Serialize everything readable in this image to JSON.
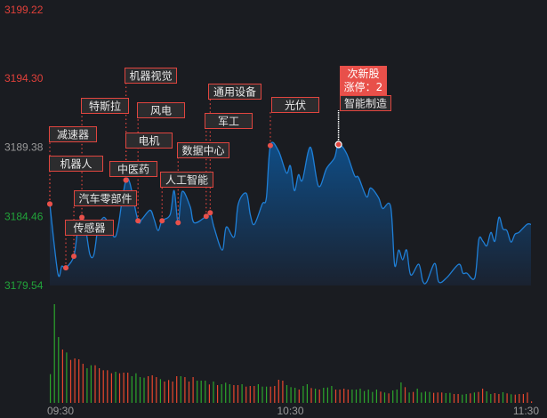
{
  "chart_data": {
    "type": "line",
    "subtype": "intraday-area-with-volume",
    "y_ticks": [
      {
        "label": "3199.22",
        "value": 3199.22,
        "color": "#e0403a"
      },
      {
        "label": "3194.30",
        "value": 3194.3,
        "color": "#e0403a"
      },
      {
        "label": "3189.38",
        "value": 3189.38,
        "color": "#9a9a9a"
      },
      {
        "label": "3184.46",
        "value": 3184.46,
        "color": "#22a33a"
      },
      {
        "label": "3179.54",
        "value": 3179.54,
        "color": "#22a33a"
      }
    ],
    "ylim": [
      3179.54,
      3199.22
    ],
    "x_ticks": [
      "09:30",
      "10:30",
      "11:30"
    ],
    "xlim": [
      "09:30",
      "11:30"
    ],
    "grid": false,
    "colors": {
      "line": "#1f7fd6",
      "fill_top": "#0f4d86",
      "fill_bottom": "#1a2230",
      "up": "#e8472d",
      "down": "#2ca62c",
      "tag_border": "#e0453f",
      "tag_bg": "#2c2c2e",
      "highlight_bg": "#e8504a"
    },
    "price": [
      [
        "09:30",
        3185.34
      ],
      [
        "09:32",
        3180.42
      ],
      [
        "09:33",
        3180.92
      ],
      [
        "09:34",
        3180.8
      ],
      [
        "09:36",
        3181.62
      ],
      [
        "09:37",
        3183.64
      ],
      [
        "09:38",
        3184.39
      ],
      [
        "09:39",
        3183.45
      ],
      [
        "09:40",
        3181.74
      ],
      [
        "09:41",
        3181.74
      ],
      [
        "09:42",
        3183.64
      ],
      [
        "09:43",
        3184.27
      ],
      [
        "09:44",
        3184.27
      ],
      [
        "09:46",
        3183.01
      ],
      [
        "09:47",
        3183.64
      ],
      [
        "09:48",
        3185.53
      ],
      [
        "09:49",
        3187.04
      ],
      [
        "09:50",
        3186.79
      ],
      [
        "09:52",
        3184.14
      ],
      [
        "09:53",
        3184.27
      ],
      [
        "09:55",
        3184.9
      ],
      [
        "09:56",
        3184.27
      ],
      [
        "09:57",
        3183.45
      ],
      [
        "09:58",
        3184.14
      ],
      [
        "10:00",
        3184.58
      ],
      [
        "10:01",
        3186.29
      ],
      [
        "10:02",
        3184.01
      ],
      [
        "10:03",
        3186.22
      ],
      [
        "10:05",
        3185.15
      ],
      [
        "10:06",
        3184.01
      ],
      [
        "10:09",
        3184.46
      ],
      [
        "10:10",
        3184.71
      ],
      [
        "10:11",
        3183.64
      ],
      [
        "10:13",
        3182.06
      ],
      [
        "10:14",
        3183.7
      ],
      [
        "10:16",
        3183.01
      ],
      [
        "10:17",
        3185.34
      ],
      [
        "10:19",
        3186.1
      ],
      [
        "10:20",
        3184.58
      ],
      [
        "10:21",
        3183.89
      ],
      [
        "10:23",
        3185.34
      ],
      [
        "10:24",
        3185.78
      ],
      [
        "10:25",
        3189.5
      ],
      [
        "10:27",
        3189.13
      ],
      [
        "10:29",
        3187.55
      ],
      [
        "10:30",
        3188.05
      ],
      [
        "10:31",
        3186.29
      ],
      [
        "10:32",
        3187.42
      ],
      [
        "10:33",
        3187.04
      ],
      [
        "10:35",
        3189.38
      ],
      [
        "10:37",
        3186.6
      ],
      [
        "10:39",
        3187.86
      ],
      [
        "10:41",
        3188.62
      ],
      [
        "10:42",
        3189.57
      ],
      [
        "10:44",
        3188.94
      ],
      [
        "10:46",
        3187.36
      ],
      [
        "10:47",
        3187.23
      ],
      [
        "10:49",
        3185.84
      ],
      [
        "10:50",
        3186.48
      ],
      [
        "10:52",
        3185.78
      ],
      [
        "10:53",
        3185.02
      ],
      [
        "10:55",
        3185.15
      ],
      [
        "10:56",
        3180.99
      ],
      [
        "10:57",
        3182.06
      ],
      [
        "10:58",
        3181.37
      ],
      [
        "10:59",
        3182.06
      ],
      [
        "11:00",
        3180.29
      ],
      [
        "11:02",
        3181.05
      ],
      [
        "11:03",
        3179.85
      ],
      [
        "11:04",
        3179.79
      ],
      [
        "11:06",
        3181.11
      ],
      [
        "11:07",
        3179.79
      ],
      [
        "11:09",
        3180.1
      ],
      [
        "11:12",
        3181.05
      ],
      [
        "11:13",
        3180.42
      ],
      [
        "11:14",
        3180.42
      ],
      [
        "11:16",
        3180.1
      ],
      [
        "11:17",
        3182.82
      ],
      [
        "11:18",
        3182.69
      ],
      [
        "11:19",
        3182.37
      ],
      [
        "11:20",
        3183.32
      ],
      [
        "11:21",
        3182.69
      ],
      [
        "11:22",
        3184.39
      ],
      [
        "11:23",
        3183.57
      ],
      [
        "11:24",
        3183.45
      ],
      [
        "11:25",
        3182.63
      ],
      [
        "11:26",
        3183.19
      ],
      [
        "11:27",
        3183.32
      ],
      [
        "11:29",
        3183.89
      ],
      [
        "11:30",
        3183.89
      ]
    ],
    "volume": [
      97,
      333,
      222,
      180,
      170,
      145,
      150,
      147,
      132,
      117,
      127,
      127,
      117,
      110,
      110,
      100,
      105,
      100,
      102,
      102,
      90,
      100,
      87,
      85,
      90,
      93,
      87,
      80,
      72,
      77,
      72,
      90,
      90,
      87,
      72,
      87,
      75,
      75,
      75,
      62,
      72,
      60,
      63,
      68,
      63,
      60,
      60,
      63,
      55,
      57,
      57,
      63,
      55,
      55,
      55,
      57,
      78,
      75,
      60,
      53,
      51,
      45,
      57,
      63,
      50,
      48,
      45,
      51,
      52,
      57,
      45,
      45,
      48,
      45,
      45,
      45,
      48,
      40,
      45,
      37,
      45,
      38,
      35,
      32,
      42,
      45,
      69,
      53,
      35,
      37,
      48,
      35,
      38,
      37,
      34,
      35,
      35,
      33,
      34,
      30,
      30,
      28,
      30,
      32,
      35,
      37,
      48,
      39,
      30,
      33,
      30,
      36,
      32,
      29,
      28,
      30,
      30,
      35,
      5
    ],
    "volume_direction": "GGGRGRRRRGGRRRRRGRRRGGGGRRRGRRRRGRRRGGGRGRGGGRRGRRRGGGRRRRGGGRGGRGRGGGRRRRGGGGGGGRGRGGGRGRGGGGRRRGGRRGGRGRRGGRRGRGRRRRR",
    "annotations": [
      {
        "label": "机器人",
        "time": "09:30",
        "price": 3185.34
      },
      {
        "label": "减速器",
        "time": "09:30",
        "price": 3185.34
      },
      {
        "label": "传感器",
        "time": "09:34",
        "price": 3180.8
      },
      {
        "label": "汽车零部件",
        "time": "09:36",
        "price": 3181.62
      },
      {
        "label": "特斯拉",
        "time": "09:38",
        "price": 3184.39
      },
      {
        "label": "中医药",
        "time": "09:49",
        "price": 3187.04
      },
      {
        "label": "电机",
        "time": "09:49",
        "price": 3187.04
      },
      {
        "label": "机器视觉",
        "time": "09:49",
        "price": 3187.04
      },
      {
        "label": "风电",
        "time": "09:52",
        "price": 3184.14
      },
      {
        "label": "人工智能",
        "time": "09:58",
        "price": 3184.14
      },
      {
        "label": "数据中心",
        "time": "10:02",
        "price": 3184.01
      },
      {
        "label": "军工",
        "time": "10:09",
        "price": 3184.46
      },
      {
        "label": "通用设备",
        "time": "10:10",
        "price": 3184.71
      },
      {
        "label": "光伏",
        "time": "10:25",
        "price": 3189.5
      },
      {
        "label": "智能制造",
        "time": "10:42",
        "price": 3189.57,
        "highlight": true,
        "callout": [
          "次新股",
          "涨停：2"
        ]
      }
    ]
  }
}
